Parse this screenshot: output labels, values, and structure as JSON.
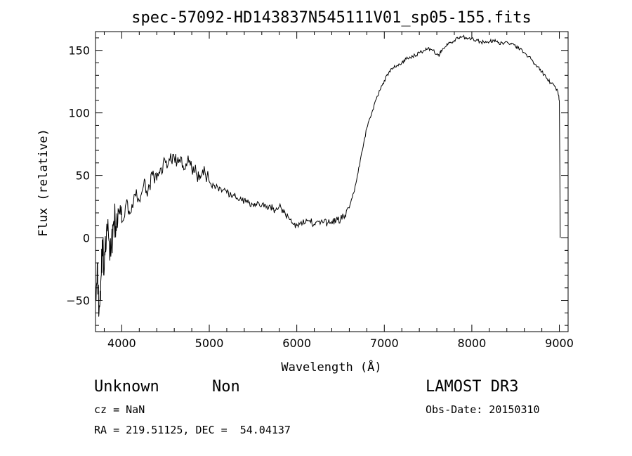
{
  "chart_data": {
    "type": "line",
    "title": "spec-57092-HD143837N545111V01_sp05-155.fits",
    "xlabel": "Wavelength (Å)",
    "ylabel": "Flux (relative)",
    "xlim": [
      3700,
      9100
    ],
    "ylim": [
      -75,
      165
    ],
    "xticks": [
      4000,
      5000,
      6000,
      7000,
      8000,
      9000
    ],
    "yticks": [
      -50,
      0,
      50,
      100,
      150
    ],
    "grid": false,
    "series": [
      {
        "x": [
          3700,
          3720,
          3740,
          3760,
          3780,
          3800,
          3825,
          3850,
          3875,
          3900,
          3925,
          3950,
          3975,
          4000,
          4050,
          4100,
          4150,
          4200,
          4250,
          4300,
          4350,
          4400,
          4450,
          4500,
          4550,
          4600,
          4650,
          4700,
          4750,
          4800,
          4850,
          4900,
          4950,
          5000,
          5050,
          5100,
          5150,
          5200,
          5250,
          5300,
          5350,
          5400,
          5450,
          5500,
          5550,
          5600,
          5650,
          5700,
          5750,
          5800,
          5850,
          5900,
          5950,
          6000,
          6050,
          6100,
          6150,
          6200,
          6250,
          6300,
          6350,
          6400,
          6450,
          6500,
          6550,
          6600,
          6650,
          6700,
          6750,
          6800,
          6850,
          6900,
          6950,
          7000,
          7050,
          7100,
          7150,
          7200,
          7250,
          7300,
          7350,
          7400,
          7450,
          7500,
          7550,
          7600,
          7625,
          7650,
          7700,
          7750,
          7800,
          7850,
          7900,
          7950,
          8000,
          8050,
          8100,
          8150,
          8200,
          8250,
          8300,
          8350,
          8400,
          8450,
          8500,
          8550,
          8600,
          8650,
          8700,
          8750,
          8800,
          8850,
          8900,
          8950,
          8980,
          9000,
          9005,
          9010
        ],
        "y": [
          -45,
          -20,
          -60,
          -35,
          -5,
          -25,
          5,
          0,
          -15,
          10,
          15,
          8,
          20,
          12,
          28,
          20,
          35,
          30,
          42,
          38,
          50,
          46,
          56,
          60,
          62,
          64,
          60,
          58,
          62,
          55,
          52,
          48,
          53,
          45,
          42,
          40,
          38,
          36,
          34,
          33,
          31,
          30,
          28,
          27,
          29,
          26,
          24,
          25,
          22,
          25,
          20,
          17,
          12,
          10,
          13,
          12,
          14,
          11,
          13,
          12,
          12,
          13,
          14,
          15,
          18,
          24,
          36,
          52,
          70,
          88,
          98,
          110,
          118,
          126,
          132,
          136,
          138,
          140,
          143,
          144,
          146,
          148,
          150,
          152,
          150,
          147,
          145,
          150,
          153,
          156,
          158,
          160,
          161,
          159,
          160,
          158,
          157,
          156,
          157,
          158,
          156,
          156,
          157,
          155,
          153,
          151,
          148,
          145,
          141,
          137,
          133,
          128,
          124,
          121,
          118,
          110,
          60,
          0
        ]
      }
    ]
  },
  "footer": {
    "object_type": "Unknown",
    "object_subtype": "Non",
    "survey": "LAMOST DR3",
    "cz": "cz = NaN",
    "obs_date": "Obs-Date: 20150310",
    "coords": "RA = 219.51125, DEC =  54.04137"
  }
}
